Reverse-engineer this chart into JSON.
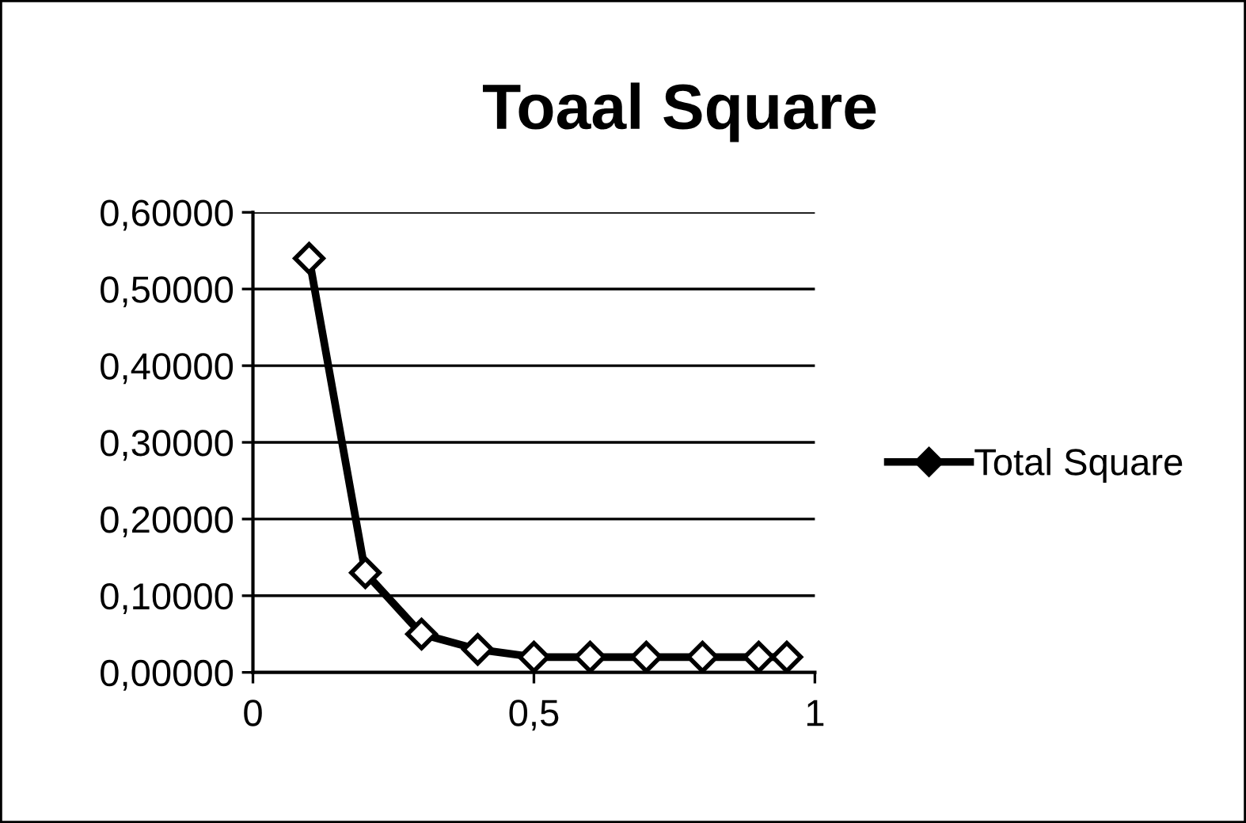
{
  "chart_data": {
    "type": "line",
    "title": "Toaal Square",
    "x": [
      0.1,
      0.2,
      0.3,
      0.4,
      0.5,
      0.6,
      0.7,
      0.8,
      0.9,
      0.95
    ],
    "series": [
      {
        "name": "Total Square",
        "color": "#000000",
        "values": [
          0.54,
          0.13,
          0.05,
          0.03,
          0.02,
          0.02,
          0.02,
          0.02,
          0.02,
          0.02
        ]
      }
    ],
    "xlim": [
      0,
      1
    ],
    "xticks": [
      0,
      {
        "value": 0.5,
        "label": "0,5"
      },
      1
    ],
    "ylim": [
      0,
      0.6
    ],
    "yticks": [
      {
        "value": 0,
        "label": "0,00000"
      },
      {
        "value": 0.1,
        "label": "0,10000"
      },
      {
        "value": 0.2,
        "label": "0,20000"
      },
      {
        "value": 0.3,
        "label": "0,30000"
      },
      {
        "value": 0.4,
        "label": "0,40000"
      },
      {
        "value": 0.5,
        "label": "0,50000"
      },
      {
        "value": 0.6,
        "label": "0,60000"
      }
    ],
    "grid": "y",
    "legend": "right",
    "marker": "diamond",
    "line_style": "solid"
  }
}
